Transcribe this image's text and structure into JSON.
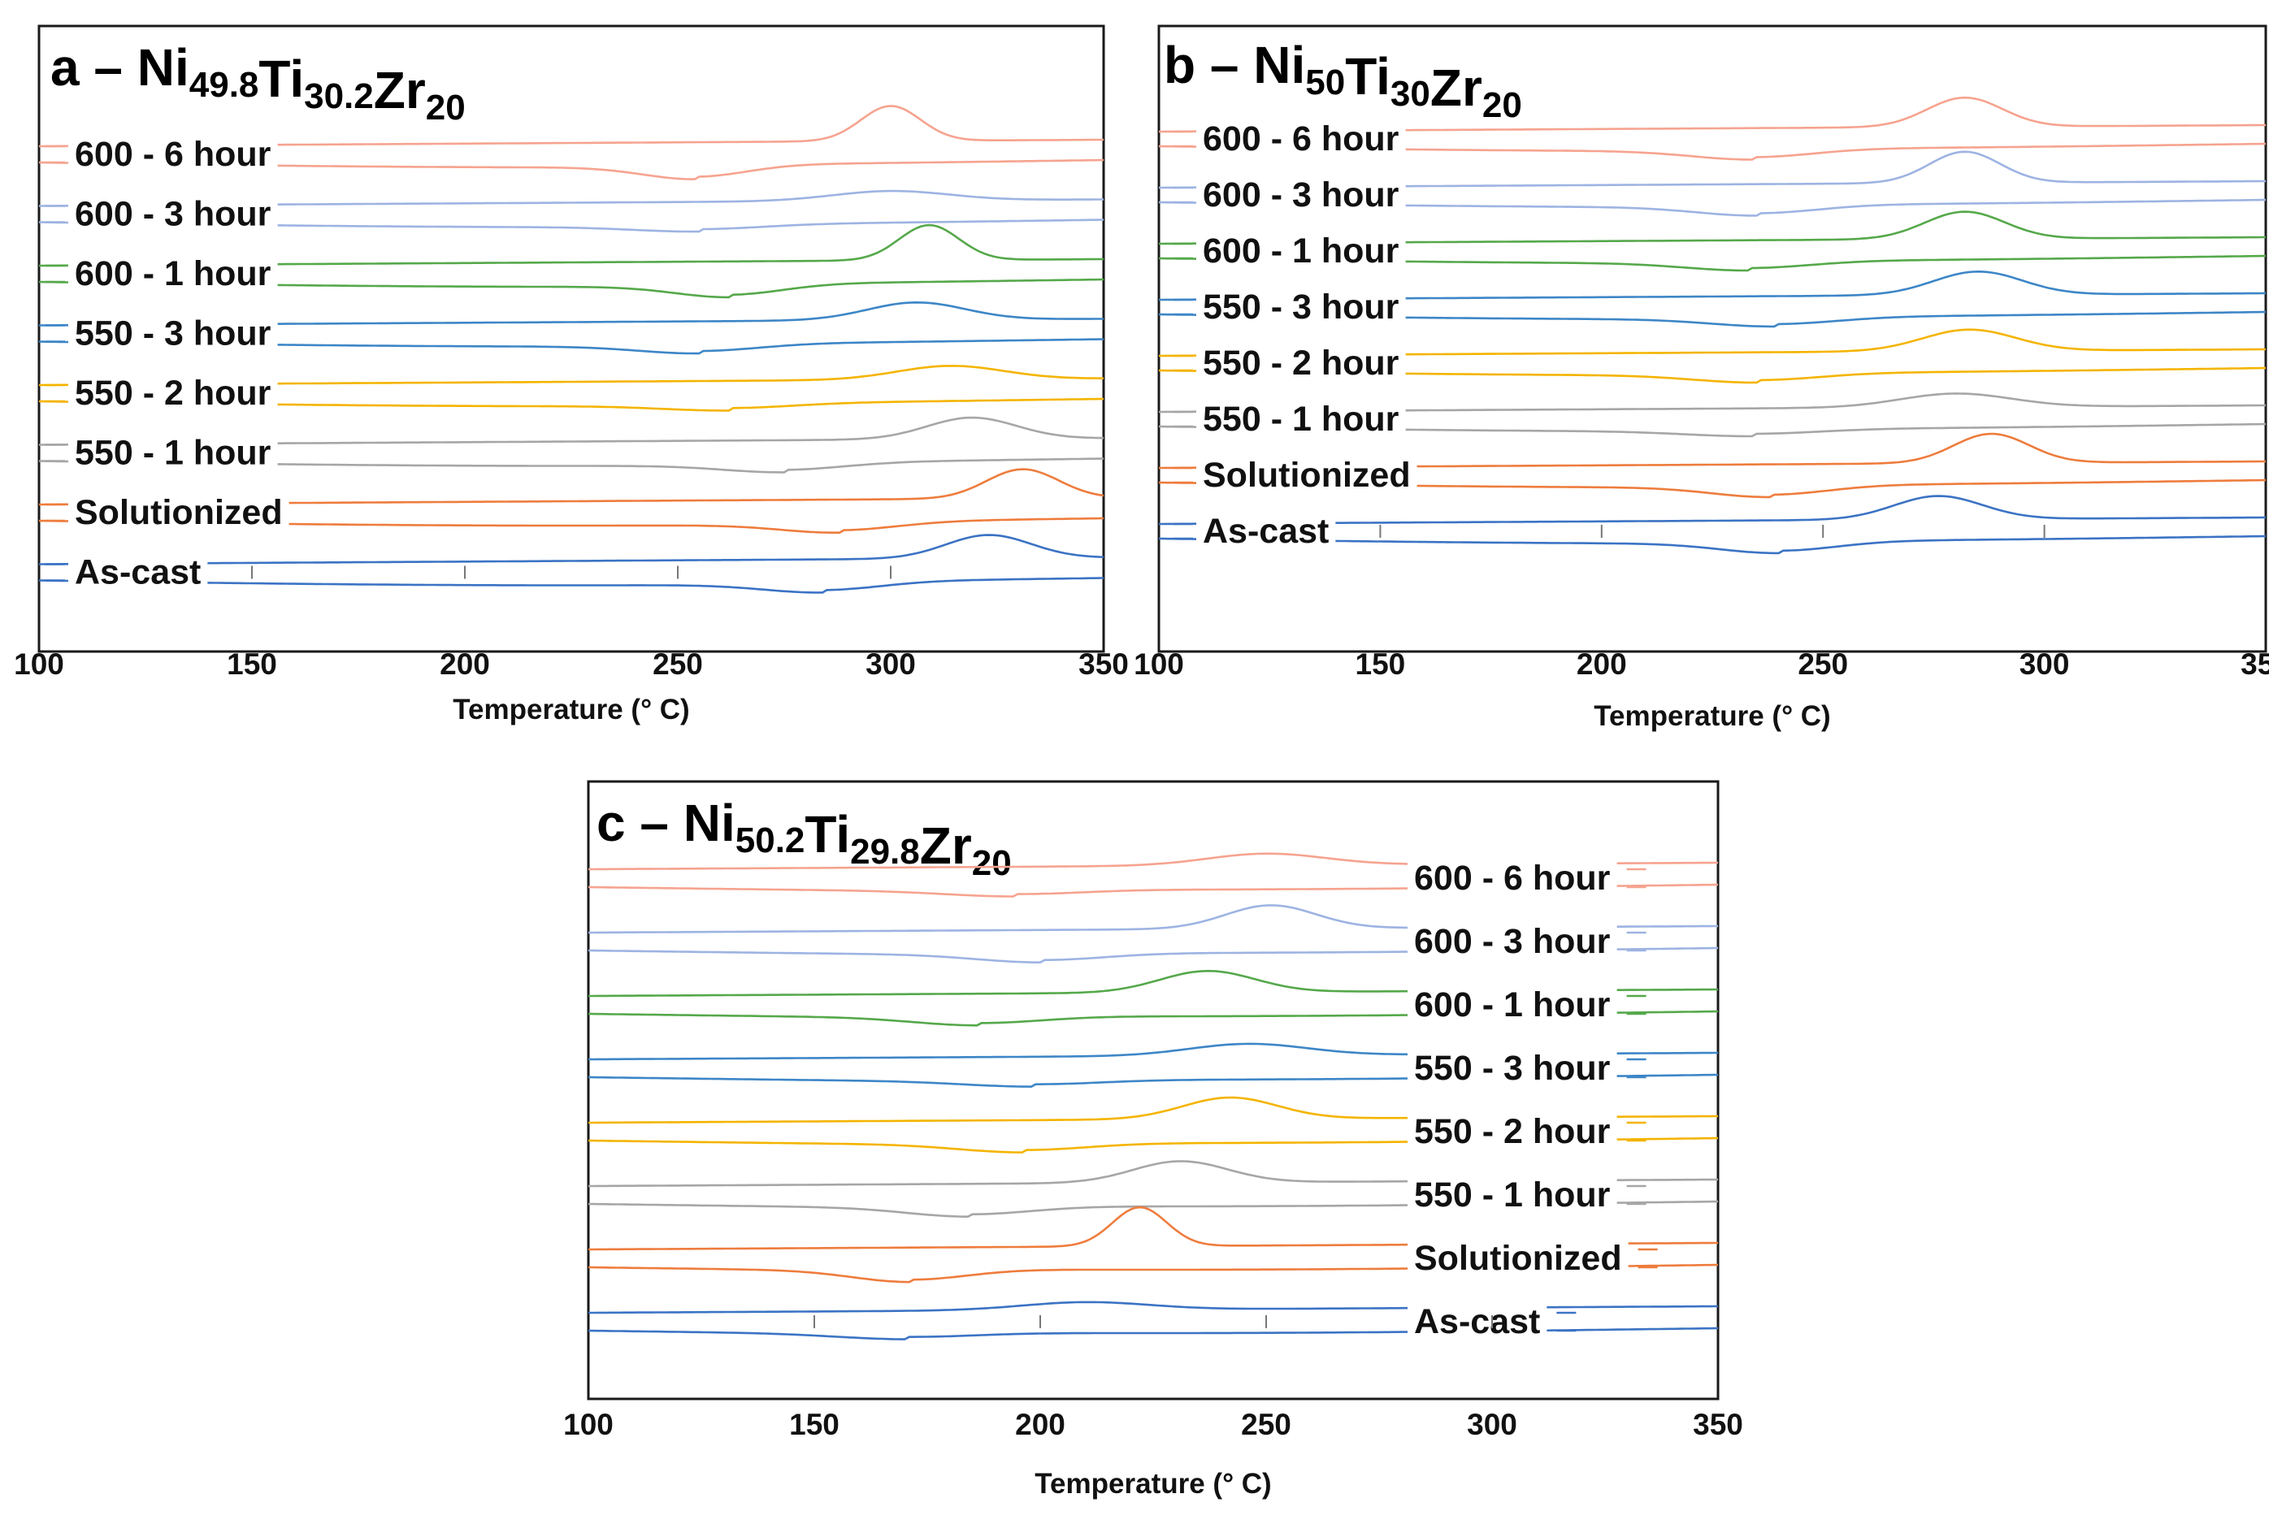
{
  "chart_data": [
    {
      "type": "line",
      "panel": "a",
      "title": {
        "letter": "a",
        "dash": " – ",
        "parts": [
          [
            "Ni",
            "49.8"
          ],
          [
            "Ti",
            "30.2"
          ],
          [
            "Zr",
            "20"
          ]
        ]
      },
      "xlabel": "Temperature (° C)",
      "xlim": [
        100,
        350
      ],
      "xticks": [
        100,
        150,
        200,
        250,
        300,
        350
      ],
      "legend_placement": "left",
      "series": [
        {
          "name": "600 - 6 hour",
          "color": "#f6a38f",
          "peak": 300,
          "dip": 254,
          "peak_amp": 0.9,
          "dip_amp": 0.5
        },
        {
          "name": "600 - 3 hour",
          "color": "#9db3e2",
          "peak": 300,
          "dip": 255,
          "peak_amp": 0.25,
          "dip_amp": 0.2
        },
        {
          "name": "600 - 1 hour",
          "color": "#55a84a",
          "peak": 309,
          "dip": 262,
          "peak_amp": 0.9,
          "dip_amp": 0.45
        },
        {
          "name": "550 - 3 hour",
          "color": "#3d86c7",
          "peak": 306,
          "dip": 255,
          "peak_amp": 0.45,
          "dip_amp": 0.3
        },
        {
          "name": "550 - 2 hour",
          "color": "#f4b400",
          "peak": 314,
          "dip": 262,
          "peak_amp": 0.35,
          "dip_amp": 0.2
        },
        {
          "name": "550 - 1 hour",
          "color": "#a6a6a6",
          "peak": 319,
          "dip": 275,
          "peak_amp": 0.55,
          "dip_amp": 0.3
        },
        {
          "name": "Solutionized",
          "color": "#ee7c3d",
          "peak": 331,
          "dip": 288,
          "peak_amp": 0.75,
          "dip_amp": 0.35
        },
        {
          "name": "As-cast",
          "color": "#3b73c4",
          "peak": 323,
          "dip": 284,
          "peak_amp": 0.6,
          "dip_amp": 0.35
        }
      ]
    },
    {
      "type": "line",
      "panel": "b",
      "title": {
        "letter": "b",
        "dash": " – ",
        "parts": [
          [
            "Ni",
            "50"
          ],
          [
            "Ti",
            "30"
          ],
          [
            "Zr",
            "20"
          ]
        ]
      },
      "xlabel": "Temperature (° C)",
      "xlim": [
        100,
        350
      ],
      "xticks": [
        100,
        150,
        200,
        250,
        300,
        350
      ],
      "legend_placement": "left",
      "series": [
        {
          "name": "600 - 6 hour",
          "color": "#f6a38f",
          "peak": 282,
          "dip": 234,
          "peak_amp": 0.75,
          "dip_amp": 0.35
        },
        {
          "name": "600 - 3 hour",
          "color": "#9db3e2",
          "peak": 282,
          "dip": 235,
          "peak_amp": 0.8,
          "dip_amp": 0.35
        },
        {
          "name": "600 - 1 hour",
          "color": "#55a84a",
          "peak": 282,
          "dip": 233,
          "peak_amp": 0.7,
          "dip_amp": 0.3
        },
        {
          "name": "550 - 3 hour",
          "color": "#3d86c7",
          "peak": 285,
          "dip": 239,
          "peak_amp": 0.6,
          "dip_amp": 0.3
        },
        {
          "name": "550 - 2 hour",
          "color": "#f4b400",
          "peak": 283,
          "dip": 235,
          "peak_amp": 0.55,
          "dip_amp": 0.3
        },
        {
          "name": "550 - 1 hour",
          "color": "#a6a6a6",
          "peak": 280,
          "dip": 234,
          "peak_amp": 0.35,
          "dip_amp": 0.2
        },
        {
          "name": "Solutionized",
          "color": "#ee7c3d",
          "peak": 288,
          "dip": 238,
          "peak_amp": 0.75,
          "dip_amp": 0.4
        },
        {
          "name": "As-cast",
          "color": "#3b73c4",
          "peak": 276,
          "dip": 240,
          "peak_amp": 0.6,
          "dip_amp": 0.4
        }
      ]
    },
    {
      "type": "line",
      "panel": "c",
      "title": {
        "letter": "c",
        "dash": " – ",
        "parts": [
          [
            "Ni",
            "50.2"
          ],
          [
            "Ti",
            "29.8"
          ],
          [
            "Zr",
            "20"
          ]
        ]
      },
      "xlabel": "Temperature (° C)",
      "xlim": [
        100,
        350
      ],
      "xticks": [
        100,
        150,
        200,
        250,
        300,
        350
      ],
      "legend_placement": "right",
      "series": [
        {
          "name": "600 - 6 hour",
          "color": "#f6a38f",
          "peak": 250,
          "dip": 194,
          "peak_amp": 0.3,
          "dip_amp": 0.2
        },
        {
          "name": "600 - 3 hour",
          "color": "#9db3e2",
          "peak": 251,
          "dip": 200,
          "peak_amp": 0.6,
          "dip_amp": 0.3
        },
        {
          "name": "600 - 1 hour",
          "color": "#55a84a",
          "peak": 237,
          "dip": 186,
          "peak_amp": 0.55,
          "dip_amp": 0.3
        },
        {
          "name": "550 - 3 hour",
          "color": "#3d86c7",
          "peak": 246,
          "dip": 198,
          "peak_amp": 0.3,
          "dip_amp": 0.2
        },
        {
          "name": "550 - 2 hour",
          "color": "#f4b400",
          "peak": 242,
          "dip": 196,
          "peak_amp": 0.55,
          "dip_amp": 0.3
        },
        {
          "name": "550 - 1 hour",
          "color": "#a6a6a6",
          "peak": 231,
          "dip": 184,
          "peak_amp": 0.55,
          "dip_amp": 0.35
        },
        {
          "name": "Solutionized",
          "color": "#ee7c3d",
          "peak": 222,
          "dip": 171,
          "peak_amp": 1.0,
          "dip_amp": 0.45
        },
        {
          "name": "As-cast",
          "color": "#3b73c4",
          "peak": 210,
          "dip": 170,
          "peak_amp": 0.2,
          "dip_amp": 0.2
        }
      ]
    }
  ]
}
